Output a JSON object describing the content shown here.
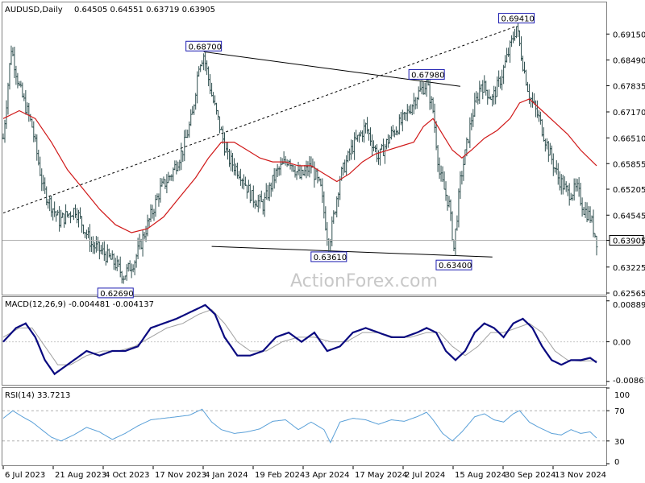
{
  "chart_data": [
    {
      "type": "ohlc",
      "title": "AUDUSD,Daily",
      "ohlc_text": "0.64505 0.64551 0.63719 0.63905",
      "last_price_label": "0.63905",
      "ylim": [
        0.62565,
        0.69565
      ],
      "y_ticks": [
        "0.69150",
        "0.68490",
        "0.67835",
        "0.67170",
        "0.66510",
        "0.65855",
        "0.65205",
        "0.64545",
        "0.63905",
        "0.63225",
        "0.62565"
      ],
      "x_ticks": [
        "6 Jul 2023",
        "21 Aug 2023",
        "4 Oct 2023",
        "17 Nov 2023",
        "4 Jan 2024",
        "19 Feb 2024",
        "3 Apr 2024",
        "17 May 2024",
        "2 Jul 2024",
        "15 Aug 2024",
        "30 Sep 2024",
        "13 Nov 2024"
      ],
      "close_path": [
        [
          0,
          0.665
        ],
        [
          5,
          0.688
        ],
        [
          10,
          0.678
        ],
        [
          18,
          0.668
        ],
        [
          25,
          0.652
        ],
        [
          35,
          0.644
        ],
        [
          45,
          0.647
        ],
        [
          55,
          0.638
        ],
        [
          62,
          0.636
        ],
        [
          70,
          0.633
        ],
        [
          75,
          0.63
        ],
        [
          82,
          0.634
        ],
        [
          90,
          0.643
        ],
        [
          98,
          0.652
        ],
        [
          105,
          0.656
        ],
        [
          112,
          0.662
        ],
        [
          118,
          0.671
        ],
        [
          122,
          0.684
        ],
        [
          125,
          0.6862
        ],
        [
          130,
          0.676
        ],
        [
          135,
          0.668
        ],
        [
          140,
          0.66
        ],
        [
          148,
          0.656
        ],
        [
          155,
          0.65
        ],
        [
          162,
          0.648
        ],
        [
          170,
          0.656
        ],
        [
          178,
          0.66
        ],
        [
          185,
          0.655
        ],
        [
          192,
          0.658
        ],
        [
          198,
          0.652
        ],
        [
          203,
          0.6375
        ],
        [
          210,
          0.655
        ],
        [
          218,
          0.663
        ],
        [
          226,
          0.668
        ],
        [
          234,
          0.66
        ],
        [
          242,
          0.666
        ],
        [
          250,
          0.67
        ],
        [
          258,
          0.676
        ],
        [
          264,
          0.679
        ],
        [
          268,
          0.672
        ],
        [
          272,
          0.656
        ],
        [
          278,
          0.648
        ],
        [
          281,
          0.637
        ],
        [
          285,
          0.654
        ],
        [
          292,
          0.67
        ],
        [
          298,
          0.679
        ],
        [
          305,
          0.675
        ],
        [
          310,
          0.68
        ],
        [
          316,
          0.688
        ],
        [
          320,
          0.6935
        ],
        [
          324,
          0.684
        ],
        [
          328,
          0.676
        ],
        [
          334,
          0.67
        ],
        [
          340,
          0.662
        ],
        [
          346,
          0.655
        ],
        [
          352,
          0.651
        ],
        [
          358,
          0.652
        ],
        [
          362,
          0.647
        ],
        [
          366,
          0.645
        ],
        [
          370,
          0.639
        ]
      ],
      "ma_path": [
        [
          0,
          0.67
        ],
        [
          10,
          0.672
        ],
        [
          20,
          0.67
        ],
        [
          30,
          0.664
        ],
        [
          40,
          0.657
        ],
        [
          50,
          0.652
        ],
        [
          60,
          0.647
        ],
        [
          70,
          0.643
        ],
        [
          80,
          0.641
        ],
        [
          90,
          0.642
        ],
        [
          100,
          0.645
        ],
        [
          110,
          0.65
        ],
        [
          120,
          0.655
        ],
        [
          128,
          0.66
        ],
        [
          136,
          0.664
        ],
        [
          144,
          0.664
        ],
        [
          152,
          0.662
        ],
        [
          160,
          0.66
        ],
        [
          168,
          0.659
        ],
        [
          176,
          0.659
        ],
        [
          184,
          0.658
        ],
        [
          192,
          0.658
        ],
        [
          200,
          0.656
        ],
        [
          208,
          0.654
        ],
        [
          216,
          0.656
        ],
        [
          224,
          0.659
        ],
        [
          232,
          0.661
        ],
        [
          240,
          0.662
        ],
        [
          248,
          0.663
        ],
        [
          256,
          0.664
        ],
        [
          262,
          0.668
        ],
        [
          268,
          0.67
        ],
        [
          274,
          0.666
        ],
        [
          280,
          0.662
        ],
        [
          286,
          0.66
        ],
        [
          292,
          0.662
        ],
        [
          300,
          0.665
        ],
        [
          308,
          0.667
        ],
        [
          316,
          0.67
        ],
        [
          322,
          0.674
        ],
        [
          328,
          0.675
        ],
        [
          336,
          0.672
        ],
        [
          344,
          0.669
        ],
        [
          352,
          0.666
        ],
        [
          360,
          0.662
        ],
        [
          370,
          0.658
        ]
      ],
      "annotations": [
        {
          "label": "0.62690",
          "x": 70,
          "y": 0.6269
        },
        {
          "label": "0.68700",
          "x": 125,
          "y": 0.687
        },
        {
          "label": "0.67980",
          "x": 264,
          "y": 0.6798
        },
        {
          "label": "0.63610",
          "x": 203,
          "y": 0.6361
        },
        {
          "label": "0.63400",
          "x": 281,
          "y": 0.634
        },
        {
          "label": "0.69410",
          "x": 320,
          "y": 0.6941
        }
      ],
      "trendlines": [
        {
          "style": "solid",
          "from": [
            125,
            0.687
          ],
          "to": [
            285,
            0.6782
          ]
        },
        {
          "style": "solid",
          "from": [
            130,
            0.6375
          ],
          "to": [
            305,
            0.6348
          ]
        },
        {
          "style": "dashed",
          "from": [
            0,
            0.646
          ],
          "to": [
            320,
            0.6935
          ]
        }
      ]
    },
    {
      "type": "line",
      "title": "MACD(12,26,9) -0.004481 -0.004137",
      "ylim": [
        -0.009,
        0.0092
      ],
      "y_ticks": [
        "0.008896",
        "0.00",
        "-0.008612"
      ],
      "macd": [
        [
          0,
          0.0
        ],
        [
          8,
          0.003
        ],
        [
          14,
          0.004
        ],
        [
          20,
          0.001
        ],
        [
          26,
          -0.004
        ],
        [
          32,
          -0.007
        ],
        [
          36,
          -0.006
        ],
        [
          44,
          -0.004
        ],
        [
          52,
          -0.002
        ],
        [
          60,
          -0.003
        ],
        [
          68,
          -0.002
        ],
        [
          76,
          -0.002
        ],
        [
          84,
          -0.001
        ],
        [
          92,
          0.003
        ],
        [
          100,
          0.004
        ],
        [
          108,
          0.005
        ],
        [
          114,
          0.006
        ],
        [
          120,
          0.007
        ],
        [
          126,
          0.008
        ],
        [
          132,
          0.006
        ],
        [
          138,
          0.001
        ],
        [
          146,
          -0.003
        ],
        [
          154,
          -0.003
        ],
        [
          162,
          -0.002
        ],
        [
          170,
          0.001
        ],
        [
          178,
          0.002
        ],
        [
          186,
          0.0
        ],
        [
          194,
          0.002
        ],
        [
          202,
          -0.002
        ],
        [
          210,
          -0.001
        ],
        [
          218,
          0.002
        ],
        [
          226,
          0.003
        ],
        [
          234,
          0.002
        ],
        [
          242,
          0.001
        ],
        [
          250,
          0.001
        ],
        [
          258,
          0.002
        ],
        [
          264,
          0.003
        ],
        [
          270,
          0.002
        ],
        [
          276,
          -0.002
        ],
        [
          282,
          -0.004
        ],
        [
          288,
          -0.002
        ],
        [
          294,
          0.002
        ],
        [
          300,
          0.004
        ],
        [
          306,
          0.003
        ],
        [
          312,
          0.001
        ],
        [
          318,
          0.004
        ],
        [
          324,
          0.005
        ],
        [
          330,
          0.003
        ],
        [
          336,
          -0.001
        ],
        [
          342,
          -0.004
        ],
        [
          348,
          -0.005
        ],
        [
          354,
          -0.004
        ],
        [
          360,
          -0.004
        ],
        [
          366,
          -0.0035
        ],
        [
          370,
          -0.0045
        ]
      ],
      "signal": [
        [
          0,
          0.001
        ],
        [
          10,
          0.003
        ],
        [
          18,
          0.003
        ],
        [
          26,
          -0.001
        ],
        [
          34,
          -0.005
        ],
        [
          42,
          -0.005
        ],
        [
          52,
          -0.003
        ],
        [
          62,
          -0.002
        ],
        [
          72,
          -0.002
        ],
        [
          82,
          -0.001
        ],
        [
          92,
          0.001
        ],
        [
          102,
          0.003
        ],
        [
          112,
          0.004
        ],
        [
          122,
          0.006
        ],
        [
          130,
          0.007
        ],
        [
          138,
          0.004
        ],
        [
          146,
          0.0
        ],
        [
          154,
          -0.002
        ],
        [
          164,
          -0.002
        ],
        [
          174,
          0.0
        ],
        [
          184,
          0.001
        ],
        [
          194,
          0.001
        ],
        [
          204,
          0.0
        ],
        [
          214,
          0.0
        ],
        [
          224,
          0.002
        ],
        [
          234,
          0.002
        ],
        [
          244,
          0.001
        ],
        [
          254,
          0.001
        ],
        [
          264,
          0.002
        ],
        [
          272,
          0.002
        ],
        [
          280,
          -0.001
        ],
        [
          288,
          -0.003
        ],
        [
          296,
          -0.001
        ],
        [
          304,
          0.002
        ],
        [
          312,
          0.002
        ],
        [
          320,
          0.003
        ],
        [
          328,
          0.004
        ],
        [
          336,
          0.002
        ],
        [
          344,
          -0.002
        ],
        [
          352,
          -0.004
        ],
        [
          360,
          -0.0042
        ],
        [
          370,
          -0.0041
        ]
      ]
    },
    {
      "type": "line",
      "title": "RSI(14) 33.7213",
      "ylim": [
        0,
        100
      ],
      "y_ticks": [
        "100",
        "70",
        "30",
        "0"
      ],
      "levels": [
        70,
        30
      ],
      "rsi": [
        [
          0,
          60
        ],
        [
          6,
          70
        ],
        [
          12,
          62
        ],
        [
          18,
          55
        ],
        [
          24,
          45
        ],
        [
          30,
          35
        ],
        [
          36,
          30
        ],
        [
          44,
          38
        ],
        [
          52,
          48
        ],
        [
          60,
          42
        ],
        [
          68,
          32
        ],
        [
          76,
          40
        ],
        [
          84,
          50
        ],
        [
          92,
          58
        ],
        [
          100,
          60
        ],
        [
          108,
          62
        ],
        [
          116,
          64
        ],
        [
          124,
          72
        ],
        [
          130,
          55
        ],
        [
          136,
          45
        ],
        [
          144,
          40
        ],
        [
          152,
          42
        ],
        [
          160,
          46
        ],
        [
          168,
          56
        ],
        [
          176,
          58
        ],
        [
          184,
          45
        ],
        [
          192,
          55
        ],
        [
          200,
          45
        ],
        [
          204,
          28
        ],
        [
          210,
          55
        ],
        [
          218,
          60
        ],
        [
          226,
          58
        ],
        [
          234,
          52
        ],
        [
          242,
          58
        ],
        [
          250,
          56
        ],
        [
          258,
          62
        ],
        [
          264,
          68
        ],
        [
          268,
          58
        ],
        [
          274,
          40
        ],
        [
          280,
          30
        ],
        [
          286,
          42
        ],
        [
          294,
          62
        ],
        [
          300,
          66
        ],
        [
          306,
          58
        ],
        [
          312,
          55
        ],
        [
          318,
          66
        ],
        [
          322,
          70
        ],
        [
          328,
          55
        ],
        [
          334,
          48
        ],
        [
          342,
          40
        ],
        [
          348,
          38
        ],
        [
          354,
          45
        ],
        [
          360,
          40
        ],
        [
          366,
          42
        ],
        [
          370,
          34
        ]
      ]
    }
  ],
  "watermark": "ActionForex.com"
}
